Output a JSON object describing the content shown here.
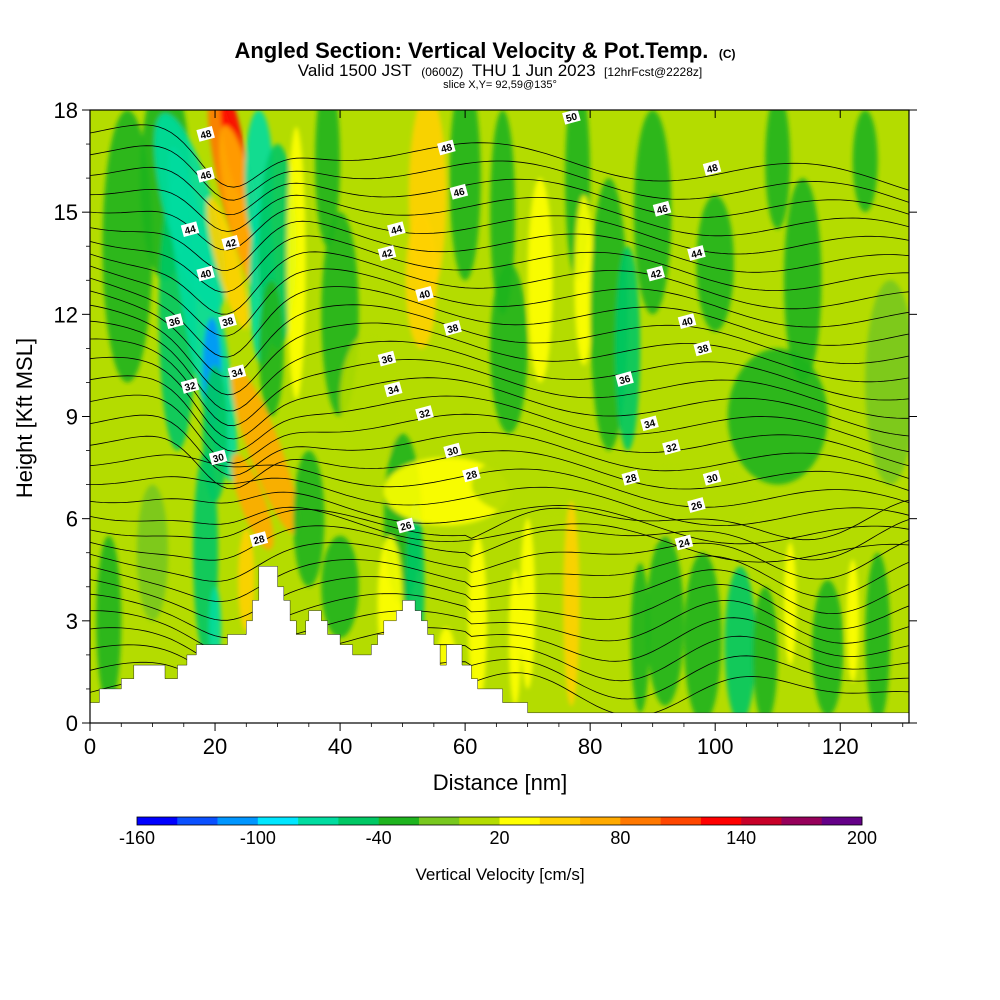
{
  "chart_data": {
    "type": "contour",
    "title": "Angled Section: Vertical Velocity & Pot.Temp.",
    "title_suffix": "(C)",
    "subtitle_main_a": "Valid 1500 JST",
    "subtitle_utc": "(0600Z)",
    "subtitle_main_b": "THU 1 Jun 2023",
    "subtitle_fcst": "[12hrFcst@2228z]",
    "slice_text": "slice X,Y= 92,59@135°",
    "xlabel": "Distance [nm]",
    "ylabel": "Height [Kft MSL]",
    "xlim": [
      0,
      131
    ],
    "ylim": [
      0,
      18
    ],
    "x_ticks": [
      0,
      20,
      40,
      60,
      80,
      100,
      120
    ],
    "y_ticks": [
      0,
      3,
      6,
      9,
      12,
      15,
      18
    ],
    "colorbar": {
      "title": "Vertical Velocity [cm/s]",
      "levels": [
        -160,
        -140,
        -120,
        -100,
        -80,
        -60,
        -40,
        -20,
        0,
        20,
        40,
        60,
        80,
        100,
        120,
        140,
        160,
        180,
        200
      ],
      "tick_labels": [
        -160,
        -100,
        -40,
        20,
        80,
        140,
        200
      ],
      "colors": [
        "#0000ff",
        "#0a50ff",
        "#0096ff",
        "#00e6ff",
        "#00dca0",
        "#00c864",
        "#1eb41e",
        "#78c81e",
        "#b4dc00",
        "#ffff00",
        "#ffd200",
        "#ffaa00",
        "#ff7800",
        "#ff4600",
        "#ff0000",
        "#c80028",
        "#96005a",
        "#640087"
      ]
    },
    "terrain": [
      [
        0,
        0.6
      ],
      [
        1.5,
        0.6
      ],
      [
        1.5,
        1.0
      ],
      [
        5,
        1.0
      ],
      [
        5,
        1.3
      ],
      [
        7,
        1.3
      ],
      [
        7,
        1.7
      ],
      [
        12,
        1.7
      ],
      [
        12,
        1.3
      ],
      [
        14,
        1.3
      ],
      [
        14,
        1.7
      ],
      [
        15.5,
        1.7
      ],
      [
        15.5,
        2.0
      ],
      [
        17,
        2.0
      ],
      [
        17,
        2.3
      ],
      [
        22,
        2.3
      ],
      [
        22,
        2.6
      ],
      [
        25,
        2.6
      ],
      [
        25,
        3.0
      ],
      [
        26,
        3.0
      ],
      [
        26,
        3.6
      ],
      [
        27,
        3.6
      ],
      [
        27,
        4.6
      ],
      [
        30,
        4.6
      ],
      [
        30,
        4.0
      ],
      [
        31,
        4.0
      ],
      [
        31,
        3.6
      ],
      [
        32,
        3.6
      ],
      [
        32,
        3.0
      ],
      [
        33,
        3.0
      ],
      [
        33,
        2.6
      ],
      [
        34.5,
        2.6
      ],
      [
        34.5,
        3.0
      ],
      [
        35,
        3.0
      ],
      [
        35,
        3.3
      ],
      [
        37,
        3.3
      ],
      [
        37,
        3.0
      ],
      [
        38,
        3.0
      ],
      [
        38,
        2.6
      ],
      [
        40,
        2.6
      ],
      [
        40,
        2.3
      ],
      [
        42,
        2.3
      ],
      [
        42,
        2.0
      ],
      [
        45,
        2.0
      ],
      [
        45,
        2.3
      ],
      [
        46,
        2.3
      ],
      [
        46,
        2.6
      ],
      [
        47,
        2.6
      ],
      [
        47,
        3.0
      ],
      [
        49,
        3.0
      ],
      [
        49,
        3.3
      ],
      [
        50,
        3.3
      ],
      [
        50,
        3.6
      ],
      [
        52,
        3.6
      ],
      [
        52,
        3.3
      ],
      [
        53,
        3.3
      ],
      [
        53,
        3.0
      ],
      [
        54,
        3.0
      ],
      [
        54,
        2.6
      ],
      [
        55,
        2.6
      ],
      [
        55,
        2.3
      ],
      [
        56,
        2.3
      ],
      [
        56,
        1.7
      ],
      [
        57,
        1.7
      ],
      [
        57,
        2.3
      ],
      [
        59.5,
        2.3
      ],
      [
        59.5,
        1.7
      ],
      [
        61,
        1.7
      ],
      [
        61,
        1.3
      ],
      [
        62,
        1.3
      ],
      [
        62,
        1.0
      ],
      [
        66,
        1.0
      ],
      [
        66,
        0.6
      ],
      [
        70,
        0.6
      ],
      [
        70,
        0.3
      ],
      [
        131,
        0.3
      ]
    ],
    "contour_labels": [
      {
        "text": "50",
        "x": 77,
        "y": 17.8
      },
      {
        "text": "48",
        "x": 18.5,
        "y": 17.3
      },
      {
        "text": "48",
        "x": 57,
        "y": 16.9
      },
      {
        "text": "48",
        "x": 99.5,
        "y": 16.3
      },
      {
        "text": "46",
        "x": 18.5,
        "y": 16.1
      },
      {
        "text": "46",
        "x": 59,
        "y": 15.6
      },
      {
        "text": "46",
        "x": 91.5,
        "y": 15.1
      },
      {
        "text": "44",
        "x": 16,
        "y": 14.5
      },
      {
        "text": "44",
        "x": 49,
        "y": 14.5
      },
      {
        "text": "44",
        "x": 97,
        "y": 13.8
      },
      {
        "text": "42",
        "x": 22.5,
        "y": 14.1
      },
      {
        "text": "42",
        "x": 47.5,
        "y": 13.8
      },
      {
        "text": "42",
        "x": 90.5,
        "y": 13.2
      },
      {
        "text": "40",
        "x": 18.5,
        "y": 13.2
      },
      {
        "text": "40",
        "x": 53.5,
        "y": 12.6
      },
      {
        "text": "40",
        "x": 95.5,
        "y": 11.8
      },
      {
        "text": "38",
        "x": 22,
        "y": 11.8
      },
      {
        "text": "38",
        "x": 58,
        "y": 11.6
      },
      {
        "text": "38",
        "x": 98,
        "y": 11.0
      },
      {
        "text": "36",
        "x": 13.5,
        "y": 11.8
      },
      {
        "text": "36",
        "x": 47.5,
        "y": 10.7
      },
      {
        "text": "36",
        "x": 85.5,
        "y": 10.1
      },
      {
        "text": "34",
        "x": 23.5,
        "y": 10.3
      },
      {
        "text": "34",
        "x": 48.5,
        "y": 9.8
      },
      {
        "text": "34",
        "x": 89.5,
        "y": 8.8
      },
      {
        "text": "32",
        "x": 16,
        "y": 9.9
      },
      {
        "text": "32",
        "x": 53.5,
        "y": 9.1
      },
      {
        "text": "32",
        "x": 93,
        "y": 8.1
      },
      {
        "text": "30",
        "x": 20.5,
        "y": 7.8
      },
      {
        "text": "30",
        "x": 58,
        "y": 8.0
      },
      {
        "text": "30",
        "x": 99.5,
        "y": 7.2
      },
      {
        "text": "28",
        "x": 27,
        "y": 5.4
      },
      {
        "text": "28",
        "x": 61,
        "y": 7.3
      },
      {
        "text": "28",
        "x": 86.5,
        "y": 7.2
      },
      {
        "text": "26",
        "x": 50.5,
        "y": 5.8
      },
      {
        "text": "26",
        "x": 97,
        "y": 6.4
      },
      {
        "text": "24",
        "x": 95,
        "y": 5.3
      }
    ]
  }
}
